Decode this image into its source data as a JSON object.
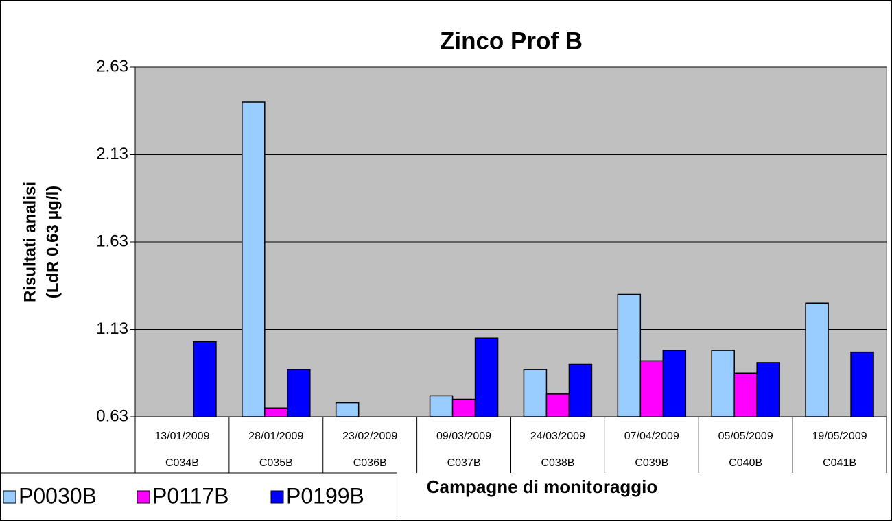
{
  "chart_data": {
    "type": "bar",
    "title": "Zinco Prof B",
    "y_label": [
      "Risultati analisi",
      "(LdR 0.63 µg/l)"
    ],
    "x_label": "Campagne di monitoraggio",
    "categories": [
      "13/01/2009",
      "28/01/2009",
      "23/02/2009",
      "09/03/2009",
      "24/03/2009",
      "07/04/2009",
      "05/05/2009",
      "19/05/2009"
    ],
    "category_codes": [
      "C034B",
      "C035B",
      "C036B",
      "C037B",
      "C038B",
      "C039B",
      "C040B",
      "C041B"
    ],
    "series": [
      {
        "name": "P0030B",
        "color": "#99ccff",
        "values": [
          null,
          2.43,
          0.71,
          0.75,
          0.9,
          1.33,
          1.01,
          1.28
        ]
      },
      {
        "name": "P0117B",
        "color": "#ff00ff",
        "values": [
          null,
          0.68,
          null,
          0.73,
          0.76,
          0.95,
          0.88,
          null
        ]
      },
      {
        "name": "P0199B",
        "color": "#0000ff",
        "values": [
          1.06,
          0.9,
          null,
          1.08,
          0.93,
          1.01,
          0.94,
          1.0
        ]
      }
    ],
    "ylim": [
      0.63,
      2.63
    ],
    "yticks": [
      0.63,
      1.13,
      1.63,
      2.13,
      2.63
    ],
    "grid": true,
    "plot_background": "#c0c0c0",
    "legend": "bottom-left"
  }
}
